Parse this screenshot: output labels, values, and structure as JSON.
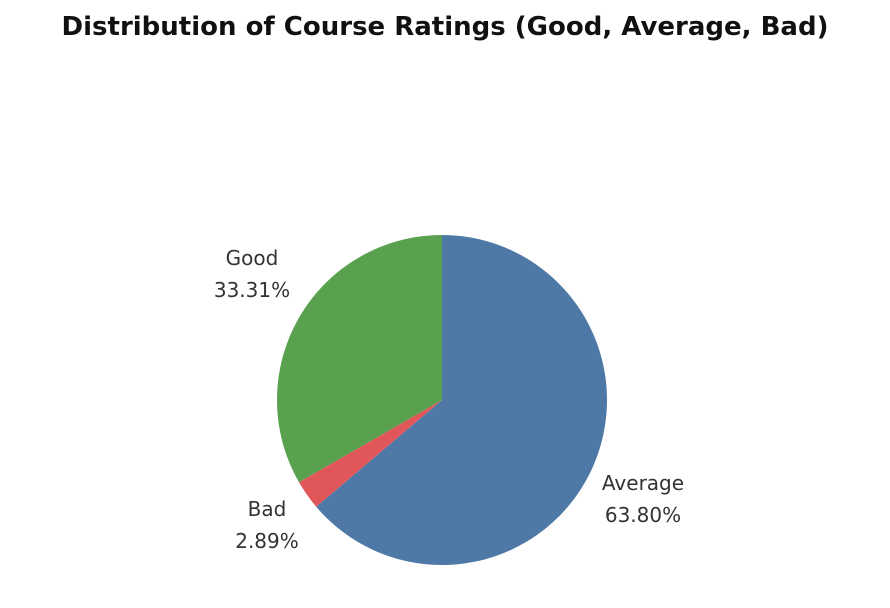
{
  "chart_data": {
    "type": "pie",
    "title": "Distribution of Course Ratings (Good, Average, Bad)",
    "slices": [
      {
        "label": "Average",
        "value": 63.8,
        "display": "63.80%",
        "color": "#4e79a7"
      },
      {
        "label": "Bad",
        "value": 2.89,
        "display": "2.89%",
        "color": "#e15759"
      },
      {
        "label": "Good",
        "value": 33.31,
        "display": "33.31%",
        "color": "#59a14f"
      }
    ],
    "start": "12 o'clock",
    "direction": "clockwise",
    "legend": "none"
  }
}
